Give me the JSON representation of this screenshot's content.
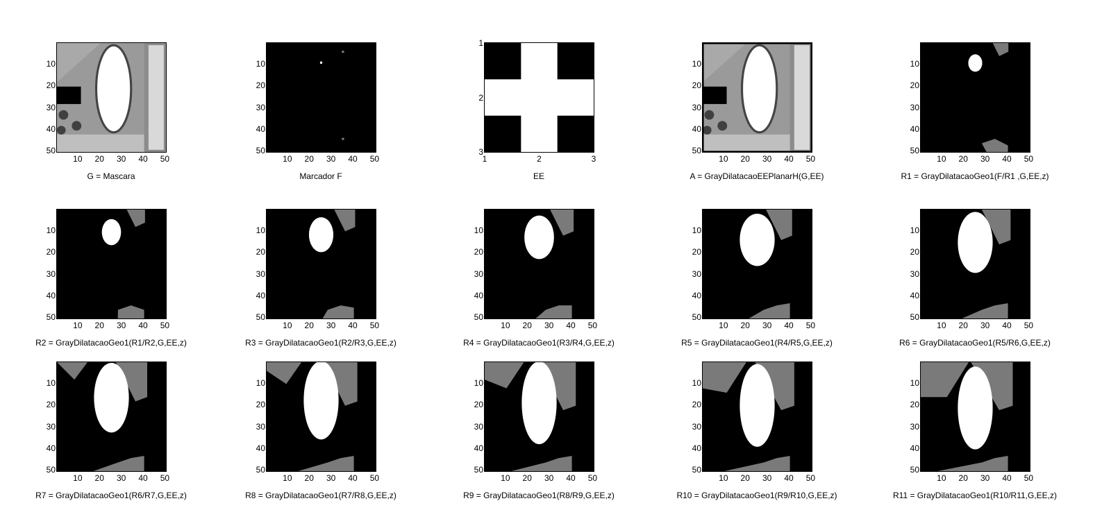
{
  "figure": {
    "panels": [
      {
        "id": "G",
        "xlabel": "G = Mascara",
        "kind": "mri",
        "ygrow": 0,
        "xticks": [
          "10",
          "20",
          "30",
          "40",
          "50"
        ],
        "yticks": [
          "10",
          "20",
          "30",
          "40",
          "50"
        ]
      },
      {
        "id": "F",
        "xlabel": "Marcador F",
        "kind": "marker",
        "ygrow": 0,
        "xticks": [
          "10",
          "20",
          "30",
          "40",
          "50"
        ],
        "yticks": [
          "10",
          "20",
          "30",
          "40",
          "50"
        ]
      },
      {
        "id": "EE",
        "xlabel": "EE",
        "kind": "cross",
        "ygrow": 0,
        "xticks": [
          "1",
          "2",
          "3"
        ],
        "yticks": [
          "1",
          "2",
          "3"
        ]
      },
      {
        "id": "A",
        "xlabel": "A = GrayDilatacaoEEPlanarH(G,EE)",
        "kind": "mri_dilated",
        "ygrow": 0,
        "xticks": [
          "10",
          "20",
          "30",
          "40",
          "50"
        ],
        "yticks": [
          "10",
          "20",
          "30",
          "40",
          "50"
        ]
      },
      {
        "id": "R1",
        "xlabel": "R1 = GrayDilatacaoGeo1(F/R1 ,G,EE,z)",
        "kind": "recon",
        "ygrow": 1,
        "xticks": [
          "10",
          "20",
          "30",
          "40",
          "50"
        ],
        "yticks": [
          "10",
          "20",
          "30",
          "40",
          "50"
        ]
      },
      {
        "id": "R2",
        "xlabel": "R2 = GrayDilatacaoGeo1(R1/R2,G,EE,z)",
        "kind": "recon",
        "ygrow": 2,
        "xticks": [
          "10",
          "20",
          "30",
          "40",
          "50"
        ],
        "yticks": [
          "10",
          "20",
          "30",
          "40",
          "50"
        ]
      },
      {
        "id": "R3",
        "xlabel": "R3 = GrayDilatacaoGeo1(R2/R3,G,EE,z)",
        "kind": "recon",
        "ygrow": 3,
        "xticks": [
          "10",
          "20",
          "30",
          "40",
          "50"
        ],
        "yticks": [
          "10",
          "20",
          "30",
          "40",
          "50"
        ]
      },
      {
        "id": "R4",
        "xlabel": "R4 = GrayDilatacaoGeo1(R3/R4,G,EE,z)",
        "kind": "recon",
        "ygrow": 4,
        "xticks": [
          "10",
          "20",
          "30",
          "40",
          "50"
        ],
        "yticks": [
          "10",
          "20",
          "30",
          "40",
          "50"
        ]
      },
      {
        "id": "R5",
        "xlabel": "R5 = GrayDilatacaoGeo1(R4/R5,G,EE,z)",
        "kind": "recon",
        "ygrow": 5,
        "xticks": [
          "10",
          "20",
          "30",
          "40",
          "50"
        ],
        "yticks": [
          "10",
          "20",
          "30",
          "40",
          "50"
        ]
      },
      {
        "id": "R6",
        "xlabel": "R6 = GrayDilatacaoGeo1(R5/R6,G,EE,z)",
        "kind": "recon",
        "ygrow": 6,
        "xticks": [
          "10",
          "20",
          "30",
          "40",
          "50"
        ],
        "yticks": [
          "10",
          "20",
          "30",
          "40",
          "50"
        ]
      },
      {
        "id": "R7",
        "xlabel": "R7 = GrayDilatacaoGeo1(R6/R7,G,EE,z)",
        "kind": "recon",
        "ygrow": 7,
        "xticks": [
          "10",
          "20",
          "30",
          "40",
          "50"
        ],
        "yticks": [
          "10",
          "20",
          "30",
          "40",
          "50"
        ]
      },
      {
        "id": "R8",
        "xlabel": "R8 = GrayDilatacaoGeo1(R7/R8,G,EE,z)",
        "kind": "recon",
        "ygrow": 8,
        "xticks": [
          "10",
          "20",
          "30",
          "40",
          "50"
        ],
        "yticks": [
          "10",
          "20",
          "30",
          "40",
          "50"
        ]
      },
      {
        "id": "R9",
        "xlabel": "R9 = GrayDilatacaoGeo1(R8/R9,G,EE,z)",
        "kind": "recon",
        "ygrow": 9,
        "xticks": [
          "10",
          "20",
          "30",
          "40",
          "50"
        ],
        "yticks": [
          "10",
          "20",
          "30",
          "40",
          "50"
        ]
      },
      {
        "id": "R10",
        "xlabel": "R10 = GrayDilatacaoGeo1(R9/R10,G,EE,z)",
        "kind": "recon",
        "ygrow": 10,
        "xticks": [
          "10",
          "20",
          "30",
          "40",
          "50"
        ],
        "yticks": [
          "10",
          "20",
          "30",
          "40",
          "50"
        ]
      },
      {
        "id": "R11",
        "xlabel": "R11 = GrayDilatacaoGeo1(R10/R11,G,EE,z)",
        "kind": "recon",
        "ygrow": 11,
        "xticks": [
          "10",
          "20",
          "30",
          "40",
          "50"
        ],
        "yticks": [
          "10",
          "20",
          "30",
          "40",
          "50"
        ]
      }
    ],
    "colors": {
      "white": "#ffffff",
      "gray": "#7a7a7a",
      "black": "#000000"
    }
  }
}
